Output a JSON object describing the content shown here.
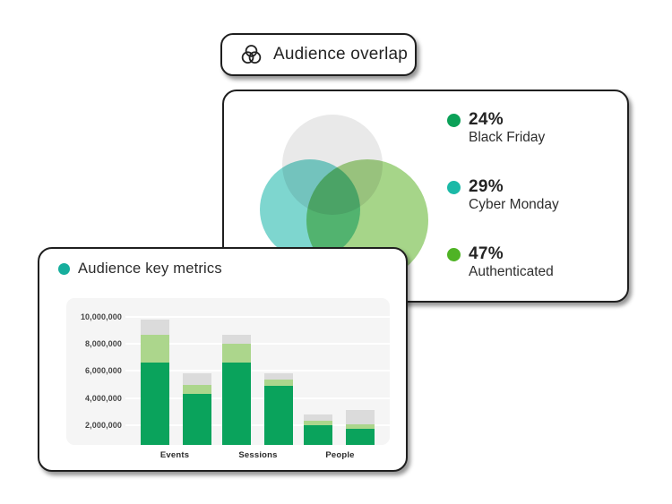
{
  "pill": {
    "icon": "venn-diagram-icon",
    "label": "Audience overlap"
  },
  "overlap_card": {
    "legend": [
      {
        "value": "24%",
        "label": "Black Friday",
        "dot_color": "#0ba158"
      },
      {
        "value": "29%",
        "label": "Cyber Monday",
        "dot_color": "#1bb9a7"
      },
      {
        "value": "47%",
        "label": "Authenticated",
        "dot_color": "#4fb325"
      }
    ],
    "venn_colors": {
      "gray": "#e9e9e9",
      "teal": "#7ed6cf",
      "green": "#a6d589"
    }
  },
  "metrics_card": {
    "title": "Audience key metrics",
    "title_dot_color": "#16ae9d"
  },
  "chart_data": [
    {
      "type": "bar",
      "stacked": true,
      "title": "Audience key metrics",
      "categories": [
        "Events",
        "Sessions",
        "People"
      ],
      "bars_per_category": 2,
      "segment_names": [
        "dark-green",
        "light-green",
        "gray"
      ],
      "segment_colors": [
        "#0aa35c",
        "#acd68c",
        "#dbdbdb"
      ],
      "bars": [
        {
          "category": "Events",
          "segments": [
            6600000,
            2100000,
            1100000
          ]
        },
        {
          "category": "Events",
          "segments": [
            4300000,
            700000,
            850000
          ]
        },
        {
          "category": "Sessions",
          "segments": [
            6600000,
            1400000,
            650000
          ]
        },
        {
          "category": "Sessions",
          "segments": [
            4900000,
            450000,
            500000
          ]
        },
        {
          "category": "People",
          "segments": [
            2000000,
            350000,
            450000
          ]
        },
        {
          "category": "People",
          "segments": [
            1700000,
            350000,
            1050000
          ]
        }
      ],
      "yticks": [
        2000000,
        4000000,
        6000000,
        8000000,
        10000000
      ],
      "ytick_labels": [
        "2,000,000",
        "4,000,000",
        "6,000,000",
        "8,000,000",
        "10,000,000"
      ],
      "ylim": [
        0,
        11400000
      ],
      "xlabel": "",
      "ylabel": "",
      "grid": true,
      "plot_bg": "#f5f5f5",
      "gridline_color": "#ffffff",
      "legend_position": "none"
    },
    {
      "type": "pie",
      "title": "Audience overlap",
      "labels": [
        "Black Friday",
        "Cyber Monday",
        "Authenticated"
      ],
      "values": [
        24,
        29,
        47
      ],
      "colors": [
        "#0ba158",
        "#1bb9a7",
        "#4fb325"
      ]
    }
  ]
}
